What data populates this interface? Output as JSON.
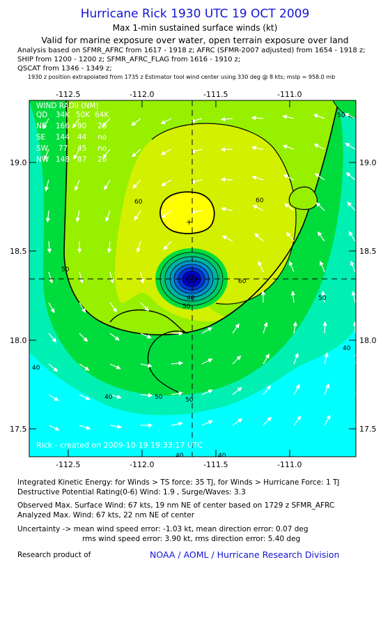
{
  "title": "Hurricane Rick 1930 UTC 19 OCT 2009",
  "subtitle": "Max 1-min sustained surface winds (kt)",
  "valid_line": "Valid for marine exposure over water, open terrain exposure over land",
  "analysis_lines": [
    "Analysis based on  SFMR_AFRC from 1617 - 1918 z;  AFRC (SFMR-2007 adjusted) from 1654 - 1918 z;",
    "SHIP from 1200 - 1200 z;  SFMR_AFRC_FLAG from 1616 - 1910 z;",
    "QSCAT from 1346 - 1349 z;"
  ],
  "position_note": "1930 z position extrapolated from 1735 z Estimator tool wind center using 330 deg @ 8 kts; mslp = 958.0 mb",
  "map": {
    "x_ticks": [
      "-112.5",
      "-112.0",
      "-111.5",
      "-111.0"
    ],
    "y_ticks": [
      "19.0",
      "18.5",
      "18.0",
      "17.5"
    ],
    "wind_radii": {
      "header": "WIND RADII (NM)",
      "columns": [
        "QD",
        "34K",
        "50K",
        "64K"
      ],
      "rows": [
        [
          "NE",
          "166",
          "90",
          "28"
        ],
        [
          "SE",
          "144",
          "44",
          "no"
        ],
        [
          "SW",
          "77",
          "45",
          "no"
        ],
        [
          "NW",
          "148",
          "87",
          "26"
        ]
      ]
    },
    "contour_labels": [
      "60",
      "60",
      "60",
      "50",
      "50",
      "50",
      "50",
      "40",
      "40",
      "40",
      "40",
      "40",
      "50",
      "50",
      "40"
    ],
    "credit": "Rick - created on 2009-10-19 19:33:17 UTC",
    "colors": {
      "c30": "#00ffff",
      "c40": "#00f0b4",
      "c50": "#00dc3c",
      "c60": "#96f000",
      "c64": "#d2f000",
      "c70": "#ffff00",
      "eye_dark": "#0000cc"
    }
  },
  "footer": {
    "ike": "Integrated Kinetic Energy:  for Winds > TS force: 35 TJ,  for Winds > Hurricane Force: 1 TJ",
    "dpr": "Destructive Potential Rating(0-6)   Wind: 1.9 , Surge/Waves: 3.3",
    "obs_max": "Observed Max. Surface Wind: 67 kts, 19 nm NE of center based on 1729 z SFMR_AFRC",
    "ana_max": "Analyzed Max. Wind: 67 kts, 22 nm NE of center",
    "uncertainty": "Uncertainty -> mean wind speed error:  -1.03 kt,   mean direction error: 0.07 deg",
    "rms": "rms wind speed error: 3.90 kt,   rms direction error: 5.40 deg",
    "research": "Research product of",
    "noaa": "NOAA / AOML / Hurricane Research Division"
  }
}
